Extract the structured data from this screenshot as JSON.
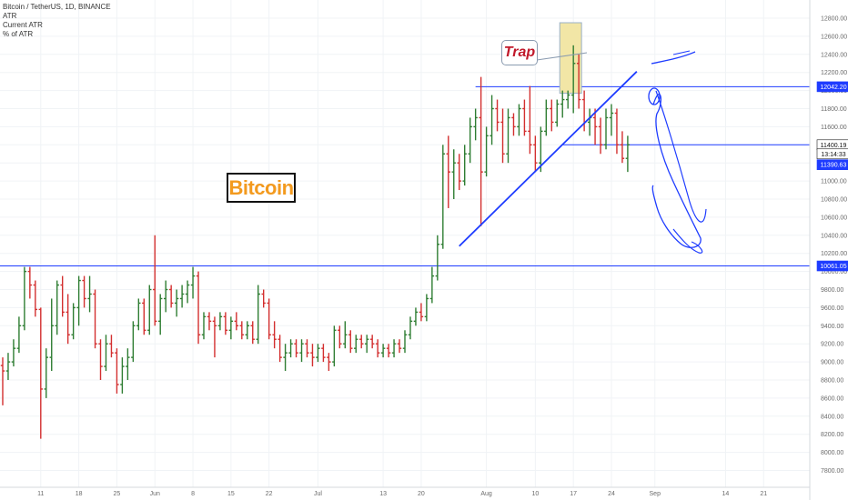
{
  "header": {
    "symbol": "Bitcoin / TetherUS, 1D, BINANCE",
    "indicators": [
      "ATR",
      "Current ATR",
      "% of ATR"
    ]
  },
  "annotations": {
    "bitcoin_label": "Bitcoin",
    "trap_label": "Trap"
  },
  "colors": {
    "up": "#2e7d32",
    "down": "#d32f2f",
    "hline": "#1e3cff",
    "trendline": "#1e3cff",
    "drawing": "#1e3cff",
    "bitcoin_text": "#f39a1e",
    "trap_text": "#c0182a",
    "trap_highlight": "#f2e6a6"
  },
  "chart_data": {
    "type": "ohlc",
    "title": "Bitcoin / TetherUS, 1D, BINANCE",
    "ylim": [
      7700,
      12900
    ],
    "yticks": [
      7800,
      8000,
      8200,
      8400,
      8600,
      8800,
      9000,
      9200,
      9400,
      9600,
      9800,
      10000,
      10200,
      10400,
      10600,
      10800,
      11000,
      11200,
      11400,
      11600,
      11800,
      12000,
      12200,
      12400,
      12600,
      12800
    ],
    "xticks": [
      {
        "label": "11",
        "index": 7
      },
      {
        "label": "18",
        "index": 14
      },
      {
        "label": "25",
        "index": 21
      },
      {
        "label": "Jun",
        "index": 28
      },
      {
        "label": "8",
        "index": 35
      },
      {
        "label": "15",
        "index": 42
      },
      {
        "label": "22",
        "index": 49
      },
      {
        "label": "Jul",
        "index": 58
      },
      {
        "label": "13",
        "index": 70
      },
      {
        "label": "20",
        "index": 77
      },
      {
        "label": "Aug",
        "index": 89
      },
      {
        "label": "10",
        "index": 98
      },
      {
        "label": "17",
        "index": 105
      },
      {
        "label": "24",
        "index": 112
      },
      {
        "label": "Sep",
        "index": 120
      },
      {
        "label": "14",
        "index": 133
      },
      {
        "label": "21",
        "index": 140
      }
    ],
    "x_total_slots": 149,
    "price_tags": [
      {
        "label": "12042.20",
        "value": 12042.2,
        "bg": "#1e3cff",
        "fg": "#ffffff"
      },
      {
        "label": "11400.19",
        "value": 11400.19,
        "bg": "#ffffff",
        "fg": "#111111"
      },
      {
        "label": "13:14:33",
        "value": 11300,
        "bg": "#ffffff",
        "fg": "#111111"
      },
      {
        "label": "11390.63",
        "value": 11180,
        "bg": "#1e3cff",
        "fg": "#ffffff"
      },
      {
        "label": "10061.05",
        "value": 10061.05,
        "bg": "#1e3cff",
        "fg": "#ffffff"
      }
    ],
    "horizontal_lines": [
      {
        "value": 10061.05,
        "from_index": 0
      },
      {
        "value": 12042.2,
        "from_index": 87
      },
      {
        "value": 11400.19,
        "from_index": 103
      }
    ],
    "trendline": {
      "x1": 84,
      "y1": 10280,
      "x2": 116,
      "y2": 12150
    },
    "candles": [
      [
        8960,
        9050,
        8520,
        8900
      ],
      [
        8900,
        9100,
        8800,
        9000
      ],
      [
        9000,
        9250,
        8950,
        9150
      ],
      [
        9150,
        9500,
        9100,
        9400
      ],
      [
        9400,
        10050,
        9350,
        10000
      ],
      [
        10000,
        10050,
        9700,
        9850
      ],
      [
        9850,
        9900,
        9500,
        9580
      ],
      [
        9580,
        9600,
        8150,
        8700
      ],
      [
        8700,
        9150,
        8600,
        9050
      ],
      [
        9050,
        9700,
        8900,
        9400
      ],
      [
        9400,
        9900,
        9300,
        9850
      ],
      [
        9850,
        9950,
        9500,
        9550
      ],
      [
        9550,
        9750,
        9200,
        9300
      ],
      [
        9300,
        9650,
        9250,
        9600
      ],
      [
        9600,
        9950,
        9400,
        9900
      ],
      [
        9900,
        9950,
        9600,
        9700
      ],
      [
        9700,
        9950,
        9550,
        9750
      ],
      [
        9750,
        9800,
        9150,
        9200
      ],
      [
        9200,
        9250,
        8800,
        8950
      ],
      [
        8950,
        9300,
        8900,
        9200
      ],
      [
        9200,
        9300,
        9050,
        9100
      ],
      [
        9100,
        9150,
        8650,
        8750
      ],
      [
        8750,
        9050,
        8650,
        8950
      ],
      [
        8950,
        9150,
        8800,
        9050
      ],
      [
        9050,
        9450,
        9000,
        9400
      ],
      [
        9400,
        9700,
        9350,
        9650
      ],
      [
        9650,
        9700,
        9300,
        9350
      ],
      [
        9350,
        9850,
        9300,
        9800
      ],
      [
        9800,
        10400,
        9400,
        9450
      ],
      [
        9450,
        9750,
        9300,
        9700
      ],
      [
        9700,
        9900,
        9550,
        9800
      ],
      [
        9800,
        9850,
        9600,
        9650
      ],
      [
        9650,
        9800,
        9500,
        9700
      ],
      [
        9700,
        9850,
        9600,
        9750
      ],
      [
        9750,
        9900,
        9650,
        9850
      ],
      [
        9850,
        10050,
        9700,
        9950
      ],
      [
        9950,
        10000,
        9200,
        9300
      ],
      [
        9300,
        9550,
        9250,
        9500
      ],
      [
        9500,
        9550,
        9350,
        9450
      ],
      [
        9450,
        9500,
        9050,
        9400
      ],
      [
        9400,
        9550,
        9350,
        9500
      ],
      [
        9500,
        9550,
        9300,
        9350
      ],
      [
        9350,
        9500,
        9250,
        9450
      ],
      [
        9450,
        9550,
        9350,
        9400
      ],
      [
        9400,
        9450,
        9250,
        9300
      ],
      [
        9300,
        9450,
        9250,
        9400
      ],
      [
        9400,
        9450,
        9200,
        9250
      ],
      [
        9250,
        9850,
        9200,
        9750
      ],
      [
        9750,
        9800,
        9600,
        9650
      ],
      [
        9650,
        9700,
        9250,
        9300
      ],
      [
        9300,
        9450,
        9150,
        9250
      ],
      [
        9250,
        9300,
        9000,
        9050
      ],
      [
        9050,
        9200,
        8900,
        9100
      ],
      [
        9100,
        9250,
        9050,
        9200
      ],
      [
        9200,
        9250,
        9050,
        9100
      ],
      [
        9100,
        9250,
        9000,
        9200
      ],
      [
        9200,
        9250,
        9050,
        9100
      ],
      [
        9100,
        9200,
        8950,
        9050
      ],
      [
        9050,
        9200,
        9000,
        9150
      ],
      [
        9150,
        9200,
        9000,
        9050
      ],
      [
        9050,
        9100,
        8900,
        9000
      ],
      [
        9000,
        9400,
        8950,
        9350
      ],
      [
        9350,
        9400,
        9150,
        9200
      ],
      [
        9200,
        9450,
        9150,
        9300
      ],
      [
        9300,
        9350,
        9100,
        9150
      ],
      [
        9150,
        9300,
        9100,
        9250
      ],
      [
        9250,
        9300,
        9150,
        9200
      ],
      [
        9200,
        9300,
        9100,
        9250
      ],
      [
        9250,
        9300,
        9150,
        9200
      ],
      [
        9200,
        9250,
        9050,
        9100
      ],
      [
        9100,
        9200,
        9050,
        9150
      ],
      [
        9150,
        9200,
        9050,
        9100
      ],
      [
        9100,
        9250,
        9050,
        9200
      ],
      [
        9200,
        9250,
        9100,
        9150
      ],
      [
        9150,
        9350,
        9100,
        9300
      ],
      [
        9300,
        9500,
        9250,
        9450
      ],
      [
        9450,
        9600,
        9400,
        9550
      ],
      [
        9550,
        9650,
        9450,
        9500
      ],
      [
        9500,
        9750,
        9450,
        9700
      ],
      [
        9700,
        10050,
        9650,
        9950
      ],
      [
        9950,
        10400,
        9900,
        10300
      ],
      [
        10300,
        11400,
        10250,
        11300
      ],
      [
        11300,
        11500,
        10700,
        11100
      ],
      [
        11100,
        11350,
        10800,
        11200
      ],
      [
        11200,
        11300,
        10900,
        11000
      ],
      [
        11000,
        11400,
        10950,
        11300
      ],
      [
        11300,
        11700,
        11200,
        11600
      ],
      [
        11600,
        11800,
        11450,
        11700
      ],
      [
        11700,
        12150,
        10500,
        11100
      ],
      [
        11100,
        11600,
        11050,
        11500
      ],
      [
        11500,
        11950,
        11400,
        11800
      ],
      [
        11800,
        11900,
        11550,
        11650
      ],
      [
        11650,
        11800,
        11200,
        11300
      ],
      [
        11300,
        11800,
        11200,
        11700
      ],
      [
        11700,
        11750,
        11500,
        11600
      ],
      [
        11600,
        11850,
        11500,
        11800
      ],
      [
        11800,
        11900,
        11500,
        11550
      ],
      [
        11550,
        12050,
        11300,
        11400
      ],
      [
        11400,
        11500,
        11100,
        11200
      ],
      [
        11200,
        11600,
        11100,
        11550
      ],
      [
        11550,
        11900,
        11500,
        11800
      ],
      [
        11800,
        11900,
        11550,
        11650
      ],
      [
        11650,
        11900,
        11600,
        11850
      ],
      [
        11850,
        12000,
        11700,
        11900
      ],
      [
        11900,
        12000,
        11800,
        11950
      ],
      [
        11950,
        12500,
        11750,
        12300
      ],
      [
        12300,
        12400,
        11800,
        11900
      ],
      [
        11900,
        12000,
        11550,
        11650
      ],
      [
        11650,
        11800,
        11500,
        11700
      ],
      [
        11700,
        11800,
        11400,
        11600
      ],
      [
        11600,
        11700,
        11300,
        11400
      ],
      [
        11400,
        11800,
        11350,
        11700
      ],
      [
        11700,
        11850,
        11500,
        11750
      ],
      [
        11750,
        11800,
        11300,
        11400
      ],
      [
        11400,
        11550,
        11200,
        11250
      ],
      [
        11250,
        11500,
        11100,
        11400
      ]
    ]
  }
}
